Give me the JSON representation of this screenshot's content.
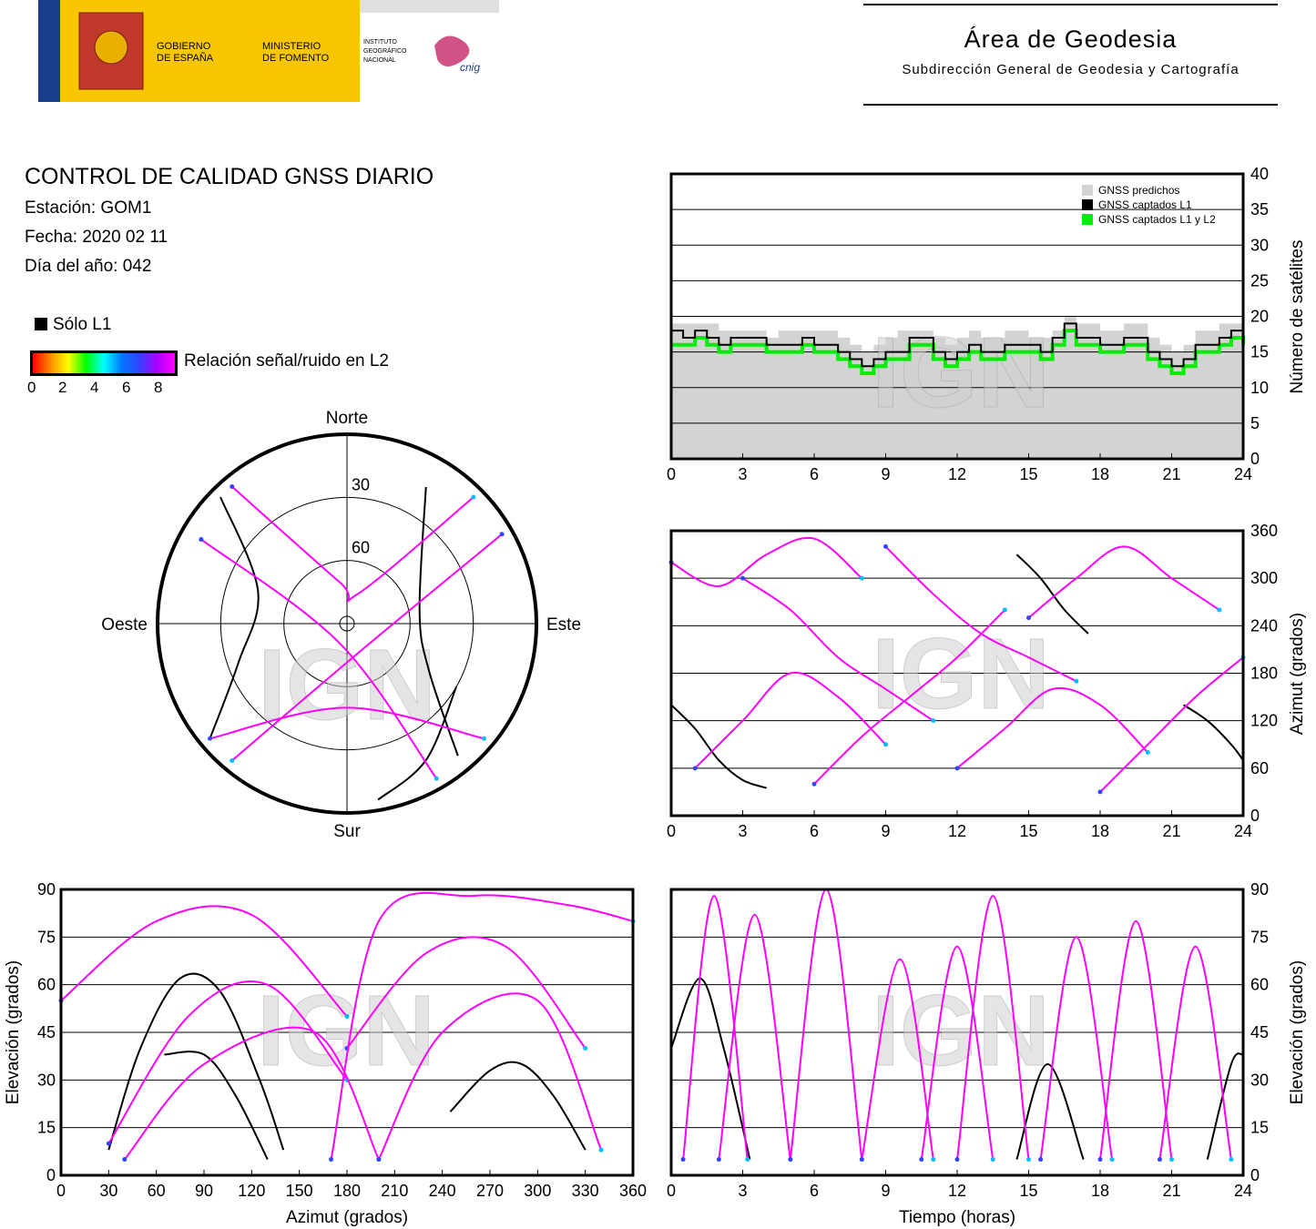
{
  "header": {
    "gobierno": [
      "GOBIERNO",
      "DE ESPAÑA"
    ],
    "ministerio": [
      "MINISTERIO",
      "DE FOMENTO"
    ],
    "instituto": [
      "INSTITUTO",
      "GEOGRÁFICO",
      "NACIONAL"
    ],
    "cnig": "cnig",
    "area_title": "Área de Geodesia",
    "area_subtitle": "Subdirección General de Geodesia y Cartografía"
  },
  "report": {
    "title": "CONTROL DE CALIDAD GNSS DIARIO",
    "station": "Estación: GOM1",
    "date": "Fecha: 2020 02 11",
    "doy": "Día del año: 042"
  },
  "legend": {
    "solo_l1": "Sólo L1",
    "snr_label": "Relación señal/ruido en L2",
    "snr_ticks": [
      "0",
      "2",
      "4",
      "6",
      "8"
    ]
  },
  "watermark": "IGN",
  "colors": {
    "predicted": "#d3d3d3",
    "l1": "#000000",
    "l1l2": "#00ee00",
    "track_high": "#ff00ff",
    "track_low": "#3344ff",
    "track_lowest": "#00bbff"
  },
  "chart_data": [
    {
      "type": "area",
      "x_unit": "hours",
      "ylabel": "Número de satélites",
      "ylim": [
        0,
        40
      ],
      "xlim": [
        0,
        24
      ],
      "xticks": [
        "0",
        "3",
        "6",
        "9",
        "12",
        "15",
        "18",
        "21",
        "24"
      ],
      "yticks": [
        "0",
        "5",
        "10",
        "15",
        "20",
        "25",
        "30",
        "35",
        "40"
      ],
      "legend": [
        "GNSS predichos",
        "GNSS captados L1",
        "GNSS captados L1 y L2"
      ],
      "legend_position": "top-right",
      "series": [
        {
          "name": "GNSS predichos",
          "x": [
            0,
            0.5,
            1,
            1.5,
            2,
            2.5,
            3,
            3.5,
            4,
            4.5,
            5,
            5.5,
            6,
            6.5,
            7,
            7.5,
            8,
            8.5,
            9,
            9.5,
            10,
            10.5,
            11,
            11.5,
            12,
            12.5,
            13,
            13.5,
            14,
            14.5,
            15,
            15.5,
            16,
            16.5,
            17,
            17.5,
            18,
            18.5,
            19,
            19.5,
            20,
            20.5,
            21,
            21.5,
            22,
            22.5,
            23,
            23.5,
            24
          ],
          "values": [
            19,
            19,
            19,
            19,
            18,
            18,
            18,
            18,
            17,
            18,
            18,
            18,
            18,
            18,
            17,
            16,
            15,
            16,
            17,
            18,
            18,
            18,
            17,
            16,
            17,
            18,
            17,
            17,
            18,
            18,
            17,
            17,
            18,
            20,
            19,
            19,
            18,
            18,
            19,
            19,
            17,
            16,
            15,
            16,
            18,
            18,
            19,
            19,
            19
          ]
        },
        {
          "name": "GNSS captados L1",
          "x": [
            0,
            0.5,
            1,
            1.5,
            2,
            2.5,
            3,
            3.5,
            4,
            4.5,
            5,
            5.5,
            6,
            6.5,
            7,
            7.5,
            8,
            8.5,
            9,
            9.5,
            10,
            10.5,
            11,
            11.5,
            12,
            12.5,
            13,
            13.5,
            14,
            14.5,
            15,
            15.5,
            16,
            16.5,
            17,
            17.5,
            18,
            18.5,
            19,
            19.5,
            20,
            20.5,
            21,
            21.5,
            22,
            22.5,
            23,
            23.5,
            24
          ],
          "values": [
            18,
            17,
            18,
            17,
            16,
            17,
            17,
            17,
            16,
            16,
            16,
            17,
            16,
            16,
            15,
            14,
            13,
            14,
            15,
            15,
            17,
            17,
            15,
            14,
            15,
            16,
            15,
            15,
            16,
            16,
            16,
            15,
            17,
            19,
            17,
            17,
            16,
            16,
            17,
            17,
            15,
            14,
            13,
            14,
            16,
            16,
            17,
            18,
            17
          ]
        },
        {
          "name": "GNSS captados L1 y L2",
          "x": [
            0,
            0.5,
            1,
            1.5,
            2,
            2.5,
            3,
            3.5,
            4,
            4.5,
            5,
            5.5,
            6,
            6.5,
            7,
            7.5,
            8,
            8.5,
            9,
            9.5,
            10,
            10.5,
            11,
            11.5,
            12,
            12.5,
            13,
            13.5,
            14,
            14.5,
            15,
            15.5,
            16,
            16.5,
            17,
            17.5,
            18,
            18.5,
            19,
            19.5,
            20,
            20.5,
            21,
            21.5,
            22,
            22.5,
            23,
            23.5,
            24
          ],
          "values": [
            16,
            16,
            17,
            16,
            15,
            16,
            16,
            16,
            15,
            15,
            15,
            16,
            15,
            15,
            14,
            13,
            12,
            13,
            14,
            14,
            16,
            16,
            14,
            13,
            14,
            15,
            14,
            14,
            15,
            15,
            15,
            14,
            16,
            18,
            16,
            16,
            15,
            15,
            16,
            16,
            14,
            13,
            12,
            13,
            15,
            15,
            16,
            17,
            16
          ]
        }
      ]
    },
    {
      "type": "scatter",
      "ylabel": "Azimut (grados)",
      "ylim": [
        0,
        360
      ],
      "xlim": [
        0,
        24
      ],
      "xticks": [
        "0",
        "3",
        "6",
        "9",
        "12",
        "15",
        "18",
        "21",
        "24"
      ],
      "yticks": [
        "0",
        "60",
        "120",
        "180",
        "240",
        "300",
        "360"
      ],
      "tracks": [
        {
          "t": [
            0,
            1,
            2,
            3,
            4
          ],
          "az": [
            140,
            110,
            70,
            45,
            35
          ],
          "l1_only": true
        },
        {
          "t": [
            14.5,
            15.5,
            16.5,
            17.5
          ],
          "az": [
            330,
            300,
            260,
            230
          ],
          "l1_only": true
        },
        {
          "t": [
            21.5,
            22.5,
            23.5,
            24
          ],
          "az": [
            140,
            120,
            90,
            70
          ],
          "l1_only": true
        },
        {
          "t": [
            0,
            2,
            4,
            6,
            8
          ],
          "az": [
            320,
            290,
            330,
            350,
            300
          ]
        },
        {
          "t": [
            1,
            3,
            5,
            7,
            9
          ],
          "az": [
            60,
            120,
            180,
            150,
            90
          ]
        },
        {
          "t": [
            3,
            5,
            7,
            9,
            11
          ],
          "az": [
            300,
            260,
            200,
            160,
            120
          ]
        },
        {
          "t": [
            6,
            8,
            10,
            12,
            14
          ],
          "az": [
            40,
            100,
            150,
            200,
            260
          ]
        },
        {
          "t": [
            9,
            11,
            13,
            15,
            17
          ],
          "az": [
            340,
            280,
            230,
            200,
            170
          ]
        },
        {
          "t": [
            12,
            14,
            16,
            18,
            20
          ],
          "az": [
            60,
            110,
            160,
            140,
            80
          ]
        },
        {
          "t": [
            15,
            17,
            19,
            21,
            23
          ],
          "az": [
            250,
            300,
            340,
            300,
            260
          ]
        },
        {
          "t": [
            18,
            20,
            22,
            24
          ],
          "az": [
            30,
            90,
            150,
            200
          ]
        }
      ]
    },
    {
      "type": "scatter",
      "xlabel": "Azimut (grados)",
      "ylabel": "Elevación (grados)",
      "xlim": [
        0,
        360
      ],
      "ylim": [
        0,
        90
      ],
      "xticks": [
        "0",
        "30",
        "60",
        "90",
        "120",
        "150",
        "180",
        "210",
        "240",
        "270",
        "300",
        "330",
        "360"
      ],
      "yticks": [
        "0",
        "15",
        "30",
        "45",
        "60",
        "75",
        "90"
      ],
      "tracks": [
        {
          "az": [
            30,
            50,
            75,
            100,
            125,
            140
          ],
          "el": [
            8,
            40,
            62,
            58,
            30,
            8
          ],
          "l1_only": true
        },
        {
          "az": [
            65,
            90,
            110,
            130
          ],
          "el": [
            38,
            38,
            25,
            5
          ],
          "l1_only": true
        },
        {
          "az": [
            245,
            270,
            290,
            310,
            330
          ],
          "el": [
            20,
            33,
            35,
            25,
            8
          ],
          "l1_only": true
        },
        {
          "az": [
            30,
            80,
            130,
            180
          ],
          "el": [
            10,
            50,
            60,
            30
          ]
        },
        {
          "az": [
            180,
            230,
            280,
            330
          ],
          "el": [
            40,
            70,
            72,
            40
          ]
        },
        {
          "az": [
            0,
            60,
            120,
            180
          ],
          "el": [
            55,
            80,
            82,
            50
          ]
        },
        {
          "az": [
            170,
            200,
            260,
            320,
            360
          ],
          "el": [
            5,
            80,
            88,
            85,
            80
          ]
        },
        {
          "az": [
            40,
            90,
            160,
            200
          ],
          "el": [
            5,
            35,
            45,
            5
          ]
        },
        {
          "az": [
            200,
            240,
            300,
            340
          ],
          "el": [
            5,
            45,
            55,
            8
          ]
        }
      ]
    },
    {
      "type": "scatter",
      "xlabel": "Tiempo (horas)",
      "ylabel": "Elevación (grados)",
      "xlim": [
        0,
        24
      ],
      "ylim": [
        0,
        90
      ],
      "xticks": [
        "0",
        "3",
        "6",
        "9",
        "12",
        "15",
        "18",
        "21",
        "24"
      ],
      "yticks": [
        "0",
        "15",
        "30",
        "45",
        "60",
        "75",
        "90"
      ],
      "tracks": [
        {
          "t": [
            0,
            1.2,
            2.2,
            3.3
          ],
          "el": [
            40,
            62,
            40,
            5
          ],
          "l1_only": true
        },
        {
          "t": [
            14.5,
            15.8,
            17.3
          ],
          "el": [
            5,
            35,
            5
          ],
          "l1_only": true
        },
        {
          "t": [
            22.5,
            23.5,
            24
          ],
          "el": [
            5,
            35,
            38
          ],
          "l1_only": true
        },
        {
          "t": [
            0.5,
            1.8,
            3.2
          ],
          "el": [
            5,
            88,
            5
          ]
        },
        {
          "t": [
            2,
            3.5,
            5
          ],
          "el": [
            5,
            82,
            5
          ]
        },
        {
          "t": [
            5,
            6.5,
            8
          ],
          "el": [
            5,
            90,
            5
          ]
        },
        {
          "t": [
            8,
            9.6,
            11
          ],
          "el": [
            5,
            68,
            5
          ]
        },
        {
          "t": [
            10.5,
            12,
            13.5
          ],
          "el": [
            5,
            72,
            5
          ]
        },
        {
          "t": [
            12,
            13.5,
            15
          ],
          "el": [
            5,
            88,
            5
          ]
        },
        {
          "t": [
            15.5,
            17,
            18.5
          ],
          "el": [
            5,
            75,
            5
          ]
        },
        {
          "t": [
            18,
            19.5,
            21
          ],
          "el": [
            5,
            80,
            5
          ]
        },
        {
          "t": [
            20.5,
            22,
            23.5
          ],
          "el": [
            5,
            72,
            5
          ]
        }
      ]
    },
    {
      "type": "scatter",
      "projection": "polar-skyplot",
      "directions": {
        "north": "Norte",
        "south": "Sur",
        "east": "Este",
        "west": "Oeste"
      },
      "elevation_rings": [
        "30",
        "60"
      ],
      "tracks": [
        {
          "az": [
            315,
            290,
            250,
            230
          ],
          "el": [
            5,
            45,
            35,
            5
          ],
          "l1_only": true
        },
        {
          "az": [
            30,
            80,
            120,
            140
          ],
          "el": [
            15,
            55,
            45,
            8
          ],
          "l1_only": true
        },
        {
          "az": [
            120,
            150,
            170
          ],
          "el": [
            30,
            15,
            5
          ],
          "l1_only": true
        },
        {
          "az": [
            320,
            350,
            20,
            45
          ],
          "el": [
            5,
            70,
            75,
            5
          ]
        },
        {
          "az": [
            300,
            200,
            150
          ],
          "el": [
            10,
            80,
            5
          ]
        },
        {
          "az": [
            60,
            160,
            220
          ],
          "el": [
            5,
            75,
            5
          ]
        },
        {
          "az": [
            230,
            180,
            130
          ],
          "el": [
            5,
            50,
            5
          ]
        }
      ]
    }
  ]
}
